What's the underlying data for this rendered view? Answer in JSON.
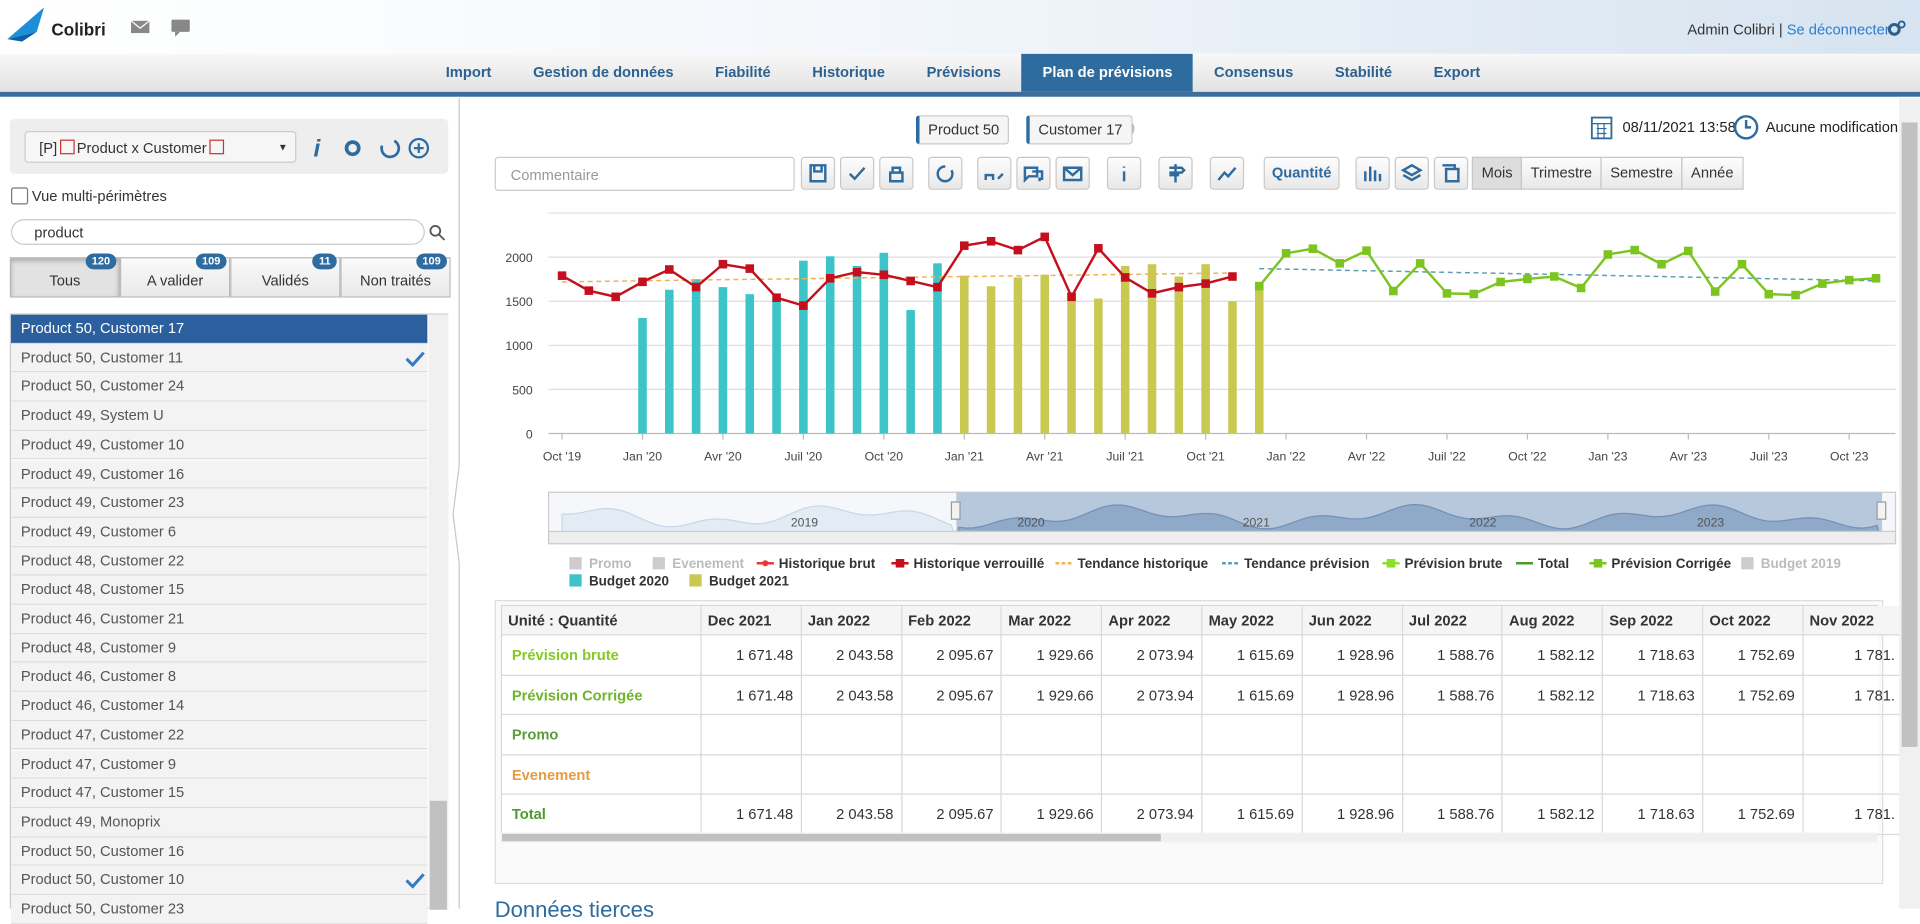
{
  "header": {
    "brand": "Colibri",
    "user": "Admin Colibri",
    "separator": "|",
    "logout": "Se déconnecter"
  },
  "nav": {
    "tabs": [
      "Import",
      "Gestion de données",
      "Fiabilité",
      "Historique",
      "Prévisions",
      "Plan de prévisions",
      "Consensus",
      "Stabilité",
      "Export"
    ],
    "active": 5
  },
  "left": {
    "prefix": "[P]",
    "selector": "Product x Customer",
    "multi": "Vue multi-périmètres",
    "search": "product",
    "tabs": [
      {
        "label": "Tous",
        "count": 120
      },
      {
        "label": "A valider",
        "count": 109
      },
      {
        "label": "Validés",
        "count": 11
      },
      {
        "label": "Non traités",
        "count": 109
      }
    ],
    "active_tab": 0,
    "items": [
      "Product 50, Customer 17",
      "Product 50, Customer 11",
      "Product 50, Customer 24",
      "Product 49, System U",
      "Product 49, Customer 10",
      "Product 49, Customer 16",
      "Product 49, Customer 23",
      "Product 49, Customer 6",
      "Product 48, Customer 22",
      "Product 48, Customer 15",
      "Product 46, Customer 21",
      "Product 48, Customer 9",
      "Product 46, Customer 8",
      "Product 46, Customer 14",
      "Product 47, Customer 22",
      "Product 47, Customer 9",
      "Product 47, Customer 15",
      "Product 49, Monoprix",
      "Product 50, Customer 16",
      "Product 50, Customer 10",
      "Product 50, Customer 23"
    ],
    "selected": 0,
    "checked": [
      1,
      19
    ]
  },
  "toolbar": {
    "chips": [
      "Product 50",
      "Customer 17"
    ],
    "date": "08/11/2021 13:58",
    "status": "Aucune modification",
    "comment": "Commentaire",
    "unit": "Quantité",
    "periods": [
      "Mois",
      "Trimestre",
      "Semestre",
      "Année"
    ],
    "active_period": 0
  },
  "chart_data": {
    "type": "combo",
    "categories": [
      "Oct '19",
      null,
      null,
      "Jan '20",
      null,
      null,
      "Avr '20",
      null,
      null,
      "Juil '20",
      null,
      null,
      "Oct '20",
      null,
      null,
      "Jan '21",
      null,
      null,
      "Avr '21",
      null,
      null,
      "Juil '21",
      null,
      null,
      "Oct '21",
      null,
      null,
      "Jan '22",
      null,
      null,
      "Avr '22",
      null,
      null,
      "Juil '22",
      null,
      null,
      "Oct '22",
      null,
      null,
      "Jan '23",
      null,
      null,
      "Avr '23",
      null,
      null,
      "Juil '23",
      null,
      null,
      "Oct '23",
      null
    ],
    "ylim": [
      0,
      2500
    ],
    "yticks": [
      0,
      500,
      1000,
      1500,
      2000
    ],
    "grid": true,
    "series": [
      {
        "name": "Promo",
        "color": "#cccccc",
        "kind": "bar",
        "visible": false
      },
      {
        "name": "Evenement",
        "color": "#cccccc",
        "kind": "bar",
        "visible": false
      },
      {
        "name": "Historique brut",
        "color": "#e8383d",
        "kind": "line",
        "marker": "dot"
      },
      {
        "name": "Historique verrouillé",
        "color": "#c4101e",
        "kind": "line",
        "marker": "square",
        "values": [
          1790,
          1620,
          1550,
          1720,
          1860,
          1660,
          1920,
          1870,
          1540,
          1450,
          1760,
          1830,
          1800,
          1730,
          1660,
          2130,
          2180,
          2080,
          2230,
          1550,
          2100,
          1770,
          1590,
          1660,
          1700,
          1780,
          null,
          null,
          null,
          null,
          null,
          null,
          null,
          null,
          null,
          null,
          null,
          null,
          null,
          null,
          null,
          null,
          null,
          null,
          null,
          null,
          null,
          null,
          null,
          null
        ]
      },
      {
        "name": "Tendance historique",
        "color": "#f0b24e",
        "kind": "dashed",
        "values": [
          1720,
          1724,
          1728,
          1732,
          1736,
          1740,
          1744,
          1748,
          1752,
          1756,
          1760,
          1764,
          1768,
          1772,
          1776,
          1780,
          1784,
          1788,
          1792,
          1796,
          1800,
          1804,
          1808,
          1812,
          1816,
          1820,
          null,
          null,
          null,
          null,
          null,
          null,
          null,
          null,
          null,
          null,
          null,
          null,
          null,
          null,
          null,
          null,
          null,
          null,
          null,
          null,
          null,
          null,
          null,
          null
        ]
      },
      {
        "name": "Tendance prévision",
        "color": "#5d9cb4",
        "kind": "dashed",
        "values": [
          null,
          null,
          null,
          null,
          null,
          null,
          null,
          null,
          null,
          null,
          null,
          null,
          null,
          null,
          null,
          null,
          null,
          null,
          null,
          null,
          null,
          null,
          null,
          null,
          null,
          null,
          1870,
          1864,
          1858,
          1852,
          1846,
          1840,
          1834,
          1828,
          1822,
          1816,
          1810,
          1804,
          1798,
          1792,
          1786,
          1780,
          1774,
          1768,
          1762,
          1756,
          1750,
          1744,
          1738,
          1732
        ]
      },
      {
        "name": "Prévision brute",
        "color": "#8ce02a",
        "kind": "line",
        "marker": "square"
      },
      {
        "name": "Total",
        "color": "#4f9a2e",
        "kind": "line"
      },
      {
        "name": "Prévision Corrigée",
        "color": "#7cc520",
        "kind": "line",
        "marker": "square",
        "values": [
          null,
          null,
          null,
          null,
          null,
          null,
          null,
          null,
          null,
          null,
          null,
          null,
          null,
          null,
          null,
          null,
          null,
          null,
          null,
          null,
          null,
          null,
          null,
          null,
          null,
          null,
          1671.48,
          2043.58,
          2095.67,
          1929.66,
          2073.94,
          1615.69,
          1928.96,
          1588.76,
          1582.12,
          1718.63,
          1752.69,
          1781,
          1650,
          2030,
          2080,
          1920,
          2070,
          1610,
          1920,
          1580,
          1570,
          1700,
          1740,
          1760
        ]
      },
      {
        "name": "Budget 2019",
        "color": "#cccccc",
        "kind": "bar",
        "visible": false
      },
      {
        "name": "Budget 2020",
        "color": "#3cc4c8",
        "kind": "bar",
        "values": [
          null,
          null,
          null,
          1310,
          1630,
          1750,
          1660,
          1580,
          1530,
          1960,
          2010,
          1900,
          2050,
          1400,
          1930,
          null,
          null,
          null,
          null,
          null,
          null,
          null,
          null,
          null,
          null,
          null,
          null,
          null,
          null,
          null,
          null,
          null,
          null,
          null,
          null,
          null,
          null,
          null,
          null,
          null,
          null,
          null,
          null,
          null,
          null,
          null,
          null,
          null,
          null,
          null
        ]
      },
      {
        "name": "Budget 2021",
        "color": "#c9c952",
        "kind": "bar",
        "values": [
          null,
          null,
          null,
          null,
          null,
          null,
          null,
          null,
          null,
          null,
          null,
          null,
          null,
          null,
          null,
          1790,
          1670,
          1770,
          1800,
          1600,
          1530,
          1900,
          1920,
          1780,
          1920,
          1500,
          1690,
          null,
          null,
          null,
          null,
          null,
          null,
          null,
          null,
          null,
          null,
          null,
          null,
          null,
          null,
          null,
          null,
          null,
          null,
          null,
          null,
          null,
          null,
          null
        ]
      }
    ],
    "navigator": [
      "2019",
      "2020",
      "2021",
      "2022",
      "2023"
    ]
  },
  "table": {
    "header": [
      "Unité : Quantité",
      "Dec 2021",
      "Jan 2022",
      "Feb 2022",
      "Mar 2022",
      "Apr 2022",
      "May 2022",
      "Jun 2022",
      "Jul 2022",
      "Aug 2022",
      "Sep 2022",
      "Oct 2022",
      "Nov 2022"
    ],
    "rows": [
      {
        "label": "Prévision brute",
        "color": "#86c926",
        "cells": [
          "1 671.48",
          "2 043.58",
          "2 095.67",
          "1 929.66",
          "2 073.94",
          "1 615.69",
          "1 928.96",
          "1 588.76",
          "1 582.12",
          "1 718.63",
          "1 752.69",
          "1 781."
        ]
      },
      {
        "label": "Prévision Corrigée",
        "color": "#6db52b",
        "cells": [
          "1 671.48",
          "2 043.58",
          "2 095.67",
          "1 929.66",
          "2 073.94",
          "1 615.69",
          "1 928.96",
          "1 588.76",
          "1 582.12",
          "1 718.63",
          "1 752.69",
          "1 781."
        ]
      },
      {
        "label": "Promo",
        "color": "#5a9e3c",
        "cells": []
      },
      {
        "label": "Evenement",
        "color": "#e89a45",
        "cells": []
      },
      {
        "label": "Total",
        "color": "#4f9a2e",
        "cells": [
          "1 671.48",
          "2 043.58",
          "2 095.67",
          "1 929.66",
          "2 073.94",
          "1 615.69",
          "1 928.96",
          "1 588.76",
          "1 582.12",
          "1 718.63",
          "1 752.69",
          "1 781."
        ]
      }
    ]
  },
  "footer": {
    "section": "Données tierces"
  }
}
